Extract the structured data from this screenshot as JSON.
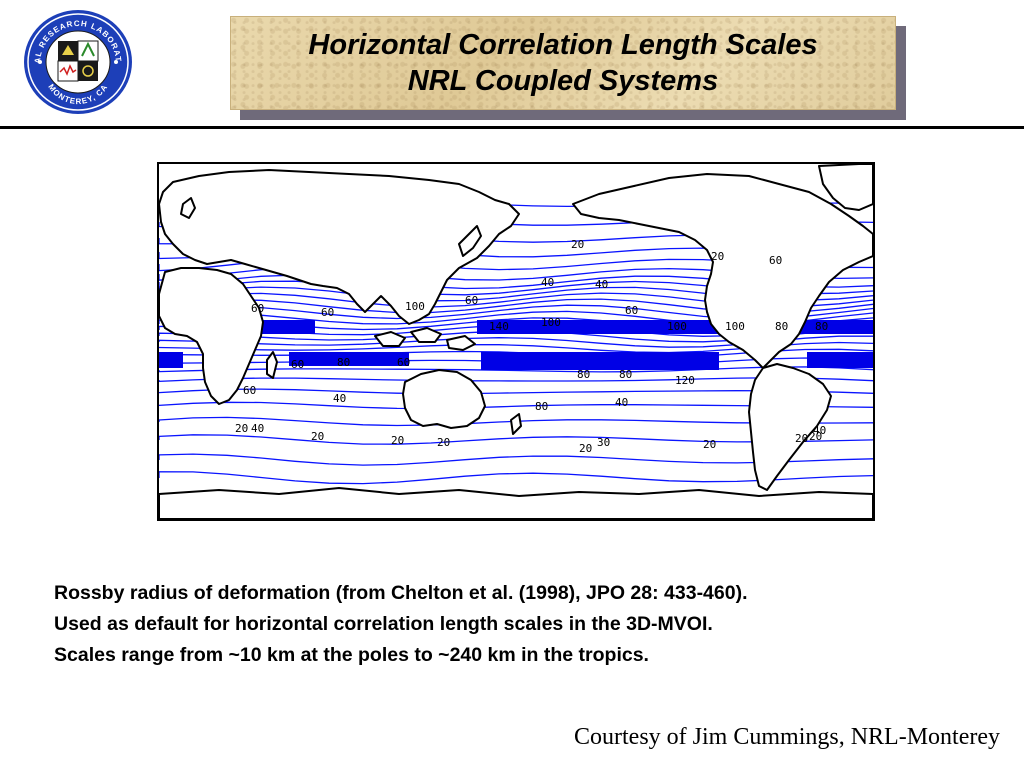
{
  "logo": {
    "top_text": "NAVAL RESEARCH LABORATORY",
    "bottom_text": "MONTEREY, CA",
    "colors": {
      "ring": "#1d3fb8",
      "inner": "#ffffff",
      "field": "#1a1a1a"
    }
  },
  "title": {
    "line1": "Horizontal Correlation Length Scales",
    "line2": "NRL Coupled Systems"
  },
  "map": {
    "contour_color": "#0a14ff",
    "band_color": "#0000e6",
    "labels": [
      "20",
      "40",
      "40",
      "60",
      "60",
      "60",
      "60",
      "100",
      "140",
      "100",
      "100",
      "100",
      "80",
      "80",
      "80",
      "80",
      "80",
      "120",
      "60",
      "60",
      "60",
      "80",
      "40",
      "40",
      "40",
      "40",
      "20",
      "30",
      "20",
      "20",
      "20",
      "20",
      "20",
      "20",
      "20",
      "60",
      "20"
    ]
  },
  "caption": {
    "line1": "Rossby radius of deformation (from Chelton et al. (1998),  JPO 28: 433-460).",
    "line2": "Used as default for horizontal correlation length scales in the 3D-MVOI.",
    "line3": "Scales range from ~10 km at the poles to ~240 km in the tropics."
  },
  "credit": "Courtesy of Jim Cummings, NRL-Monterey"
}
